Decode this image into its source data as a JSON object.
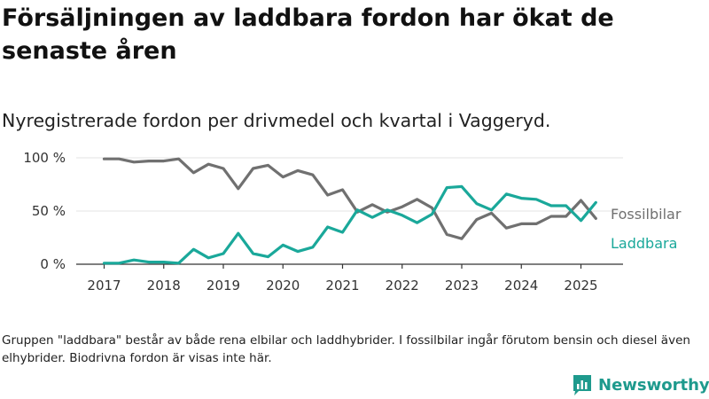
{
  "title": "Försäljningen av laddbara fordon har ökat de senaste åren",
  "subtitle": "Nyregistrerade fordon per drivmedel och kvartal i Vaggeryd.",
  "note": "Gruppen \"laddbara\" består av både rena elbilar och laddhybrider. I fossilbilar ingår förutom bensin och diesel även elhybrider. Biodrivna fordon är visas inte här.",
  "brand": "Newsworthy",
  "brand_icon": "bar-chart-logo-icon",
  "colors": {
    "fossil": "#707070",
    "laddbara": "#1aa89a",
    "grid": "#e3e3e3",
    "axis": "#333333",
    "brand": "#1e9a8d"
  },
  "chart_data": {
    "type": "line",
    "title": "Nyregistrerade fordon per drivmedel och kvartal i Vaggeryd.",
    "xlabel": "",
    "ylabel": "",
    "ylim": [
      0,
      100
    ],
    "y_ticks": [
      0,
      50,
      100
    ],
    "y_tick_labels": [
      "0 %",
      "50 %",
      "100 %"
    ],
    "x_ticks": [
      2017,
      2018,
      2019,
      2020,
      2021,
      2022,
      2023,
      2024,
      2025
    ],
    "x_tick_labels": [
      "2017",
      "2018",
      "2019",
      "2020",
      "2021",
      "2022",
      "2023",
      "2024",
      "2025"
    ],
    "grid": true,
    "legend": "inline-right",
    "x": [
      2017.0,
      2017.25,
      2017.5,
      2017.75,
      2018.0,
      2018.25,
      2018.5,
      2018.75,
      2019.0,
      2019.25,
      2019.5,
      2019.75,
      2020.0,
      2020.25,
      2020.5,
      2020.75,
      2021.0,
      2021.25,
      2021.5,
      2021.75,
      2022.0,
      2022.25,
      2022.5,
      2022.75,
      2023.0,
      2023.25,
      2023.5,
      2023.75,
      2024.0,
      2024.25,
      2024.5,
      2024.75,
      2025.0,
      2025.25
    ],
    "series": [
      {
        "name": "Fossilbilar",
        "values": [
          99,
          99,
          96,
          97,
          97,
          99,
          86,
          94,
          90,
          71,
          90,
          93,
          82,
          88,
          84,
          65,
          70,
          49,
          56,
          49,
          54,
          61,
          53,
          28,
          24,
          42,
          48,
          34,
          38,
          38,
          45,
          45,
          60,
          43
        ]
      },
      {
        "name": "Laddbara",
        "values": [
          1,
          1,
          4,
          2,
          2,
          1,
          14,
          6,
          10,
          29,
          10,
          7,
          18,
          12,
          16,
          35,
          30,
          51,
          44,
          51,
          46,
          39,
          47,
          72,
          73,
          57,
          51,
          66,
          62,
          61,
          55,
          55,
          41,
          58
        ]
      }
    ]
  }
}
